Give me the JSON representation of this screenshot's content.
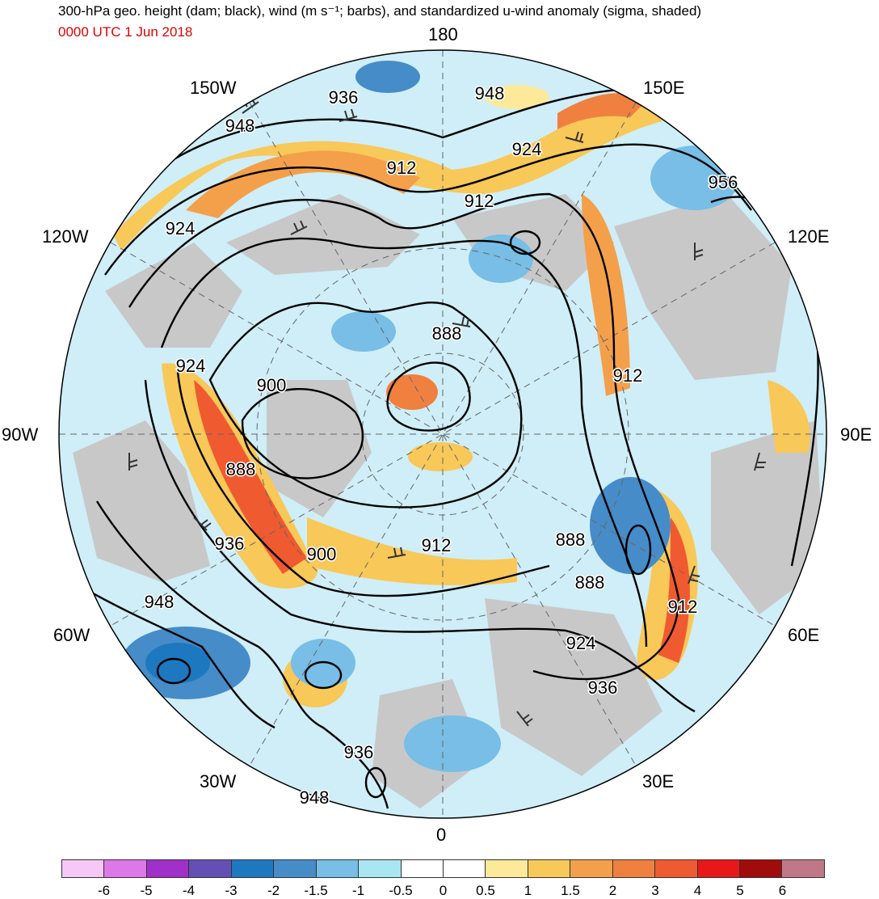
{
  "title": "300-hPa geo. height (dam; black), wind (m s⁻¹; barbs), and standardized u-wind anomaly (sigma, shaded)",
  "valid_time": "0000 UTC 1 Jun 2018",
  "longitude_labels": [
    "180",
    "150E",
    "120E",
    "90E",
    "60E",
    "30E",
    "0",
    "30W",
    "60W",
    "90W",
    "120W",
    "150W"
  ],
  "contour_labels": [
    "936",
    "948",
    "948",
    "924",
    "912",
    "924",
    "912",
    "956",
    "888",
    "924",
    "900",
    "912",
    "888",
    "936",
    "900",
    "912",
    "888",
    "888",
    "912",
    "948",
    "924",
    "936",
    "936",
    "948"
  ],
  "colorbar": {
    "colors": [
      "#f6c8f6",
      "#dc78e8",
      "#a030c8",
      "#6450b4",
      "#1e78c0",
      "#468cc8",
      "#78bee6",
      "#a8e6f2",
      "#ffffff",
      "#ffffff",
      "#fde99a",
      "#f8c858",
      "#f4a04a",
      "#f08040",
      "#f05a30",
      "#e81818",
      "#a00c0c",
      "#c07888"
    ],
    "tick_labels": [
      "-6",
      "-5",
      "-4",
      "-3",
      "-2",
      "-1.5",
      "-1",
      "-0.5",
      "0",
      "0.5",
      "1",
      "1.5",
      "2",
      "3",
      "4",
      "5",
      "6"
    ]
  }
}
